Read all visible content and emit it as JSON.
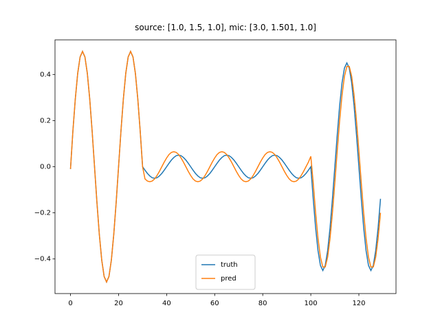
{
  "chart_data": {
    "type": "line",
    "title": "source: [1.0, 1.5, 1.0], mic: [3.0, 1.501, 1.0]",
    "x": [
      0,
      1,
      2,
      3,
      4,
      5,
      6,
      7,
      8,
      9,
      10,
      11,
      12,
      13,
      14,
      15,
      16,
      17,
      18,
      19,
      20,
      21,
      22,
      23,
      24,
      25,
      26,
      27,
      28,
      29,
      30,
      31,
      32,
      33,
      34,
      35,
      36,
      37,
      38,
      39,
      40,
      41,
      42,
      43,
      44,
      45,
      46,
      47,
      48,
      49,
      50,
      51,
      52,
      53,
      54,
      55,
      56,
      57,
      58,
      59,
      60,
      61,
      62,
      63,
      64,
      65,
      66,
      67,
      68,
      69,
      70,
      71,
      72,
      73,
      74,
      75,
      76,
      77,
      78,
      79,
      80,
      81,
      82,
      83,
      84,
      85,
      86,
      87,
      88,
      89,
      90,
      91,
      92,
      93,
      94,
      95,
      96,
      97,
      98,
      99,
      100,
      101,
      102,
      103,
      104,
      105,
      106,
      107,
      108,
      109,
      110,
      111,
      112,
      113,
      114,
      115,
      116,
      117,
      118,
      119,
      120,
      121,
      122,
      123,
      124,
      125,
      126,
      127,
      128,
      129
    ],
    "series": [
      {
        "name": "truth",
        "color": "#1f77b4",
        "values": [
          -0.01,
          0.155,
          0.294,
          0.405,
          0.476,
          0.5,
          0.476,
          0.405,
          0.294,
          0.155,
          0,
          -0.155,
          -0.294,
          -0.405,
          -0.476,
          -0.5,
          -0.476,
          -0.405,
          -0.294,
          -0.155,
          0,
          0.155,
          0.294,
          0.405,
          0.476,
          0.5,
          0.476,
          0.405,
          0.294,
          0.155,
          0,
          -0.015,
          -0.029,
          -0.04,
          -0.048,
          -0.05,
          -0.048,
          -0.04,
          -0.029,
          -0.015,
          0,
          0.015,
          0.029,
          0.04,
          0.048,
          0.05,
          0.048,
          0.04,
          0.029,
          0.015,
          0,
          -0.015,
          -0.029,
          -0.04,
          -0.048,
          -0.05,
          -0.048,
          -0.04,
          -0.029,
          -0.015,
          0,
          0.015,
          0.029,
          0.04,
          0.048,
          0.05,
          0.048,
          0.04,
          0.029,
          0.015,
          0,
          -0.015,
          -0.029,
          -0.04,
          -0.048,
          -0.05,
          -0.048,
          -0.04,
          -0.029,
          -0.015,
          0,
          0.015,
          0.029,
          0.04,
          0.048,
          0.05,
          0.048,
          0.04,
          0.029,
          0.015,
          0,
          -0.015,
          -0.029,
          -0.04,
          -0.048,
          -0.05,
          -0.048,
          -0.04,
          -0.029,
          -0.015,
          0,
          -0.139,
          -0.265,
          -0.364,
          -0.428,
          -0.45,
          -0.428,
          -0.364,
          -0.265,
          -0.139,
          0,
          0.139,
          0.265,
          0.364,
          0.428,
          0.45,
          0.428,
          0.364,
          0.265,
          0.139,
          0,
          -0.139,
          -0.265,
          -0.364,
          -0.428,
          -0.45,
          -0.428,
          -0.364,
          -0.265,
          -0.139
        ]
      },
      {
        "name": "pred",
        "color": "#ff7f0e",
        "values": [
          -0.01,
          0.155,
          0.294,
          0.405,
          0.476,
          0.5,
          0.476,
          0.405,
          0.294,
          0.155,
          0,
          -0.155,
          -0.294,
          -0.405,
          -0.476,
          -0.5,
          -0.476,
          -0.405,
          -0.294,
          -0.155,
          0,
          0.155,
          0.294,
          0.405,
          0.476,
          0.5,
          0.476,
          0.405,
          0.294,
          0.155,
          0,
          -0.053,
          -0.062,
          -0.065,
          -0.062,
          -0.053,
          -0.038,
          -0.02,
          0,
          0.02,
          0.038,
          0.053,
          0.062,
          0.065,
          0.062,
          0.053,
          0.038,
          0.02,
          0,
          -0.02,
          -0.038,
          -0.053,
          -0.062,
          -0.065,
          -0.062,
          -0.053,
          -0.038,
          -0.02,
          0,
          0.02,
          0.038,
          0.053,
          0.062,
          0.065,
          0.062,
          0.053,
          0.038,
          0.02,
          0,
          -0.02,
          -0.038,
          -0.053,
          -0.062,
          -0.065,
          -0.062,
          -0.053,
          -0.038,
          -0.02,
          0,
          0.02,
          0.038,
          0.053,
          0.062,
          0.065,
          0.062,
          0.053,
          0.038,
          0.02,
          0,
          -0.02,
          -0.038,
          -0.053,
          -0.062,
          -0.065,
          -0.062,
          -0.053,
          -0.038,
          -0.02,
          0,
          0.02,
          0.045,
          -0.069,
          -0.2,
          -0.311,
          -0.392,
          -0.435,
          -0.435,
          -0.392,
          -0.311,
          -0.2,
          -0.069,
          0.069,
          0.2,
          0.311,
          0.392,
          0.435,
          0.435,
          0.392,
          0.311,
          0.2,
          0.069,
          -0.069,
          -0.2,
          -0.311,
          -0.392,
          -0.435,
          -0.435,
          -0.392,
          -0.311,
          -0.2
        ]
      }
    ],
    "xlim": [
      -6.45,
      135.45
    ],
    "xticks": [
      0,
      20,
      40,
      60,
      80,
      100,
      120
    ],
    "ylim": [
      -0.55,
      0.55
    ],
    "yticks": [
      {
        "value": -0.4,
        "label": "−0.4"
      },
      {
        "value": -0.2,
        "label": "−0.2"
      },
      {
        "value": 0,
        "label": "0.0"
      },
      0.2,
      0.4
    ],
    "legend": "lower center"
  }
}
